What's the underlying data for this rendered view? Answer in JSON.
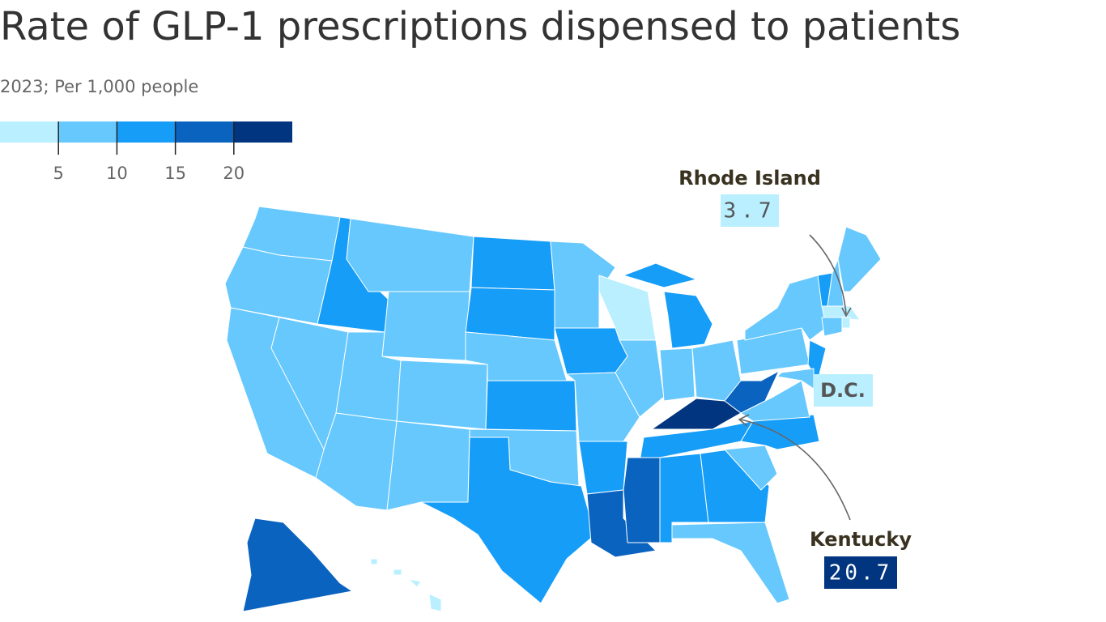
{
  "chart_data": {
    "type": "map",
    "title": "Rate of GLP-1 prescriptions dispensed to patients",
    "subtitle": "2023; Per 1,000 people",
    "legend": {
      "xlim": [
        0,
        25
      ],
      "ticks": [
        5,
        10,
        15,
        20
      ],
      "colors": [
        "#b9efff",
        "#66c8fd",
        "#169df8",
        "#0b63c0",
        "#02357f"
      ]
    },
    "annotations": [
      {
        "label": "Rhode Island",
        "value": 3.7
      },
      {
        "label": "Kentucky",
        "value": 20.7
      },
      {
        "label": "D.C."
      }
    ]
  }
}
